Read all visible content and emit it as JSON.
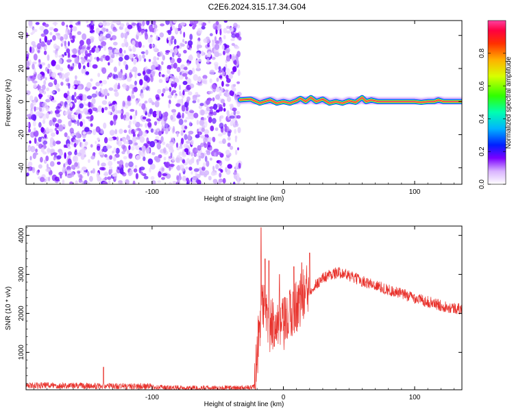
{
  "title": "C2E6.2024.315.17.34.G04",
  "chart_data": [
    {
      "type": "heatmap",
      "xlabel": "Height of straight line (km)",
      "ylabel": "Frequency (Hz)",
      "xlim": [
        -196,
        136
      ],
      "ylim": [
        -50,
        49
      ],
      "x_ticks": [
        -100,
        0,
        100
      ],
      "y_ticks": [
        -40,
        -20,
        0,
        20,
        40
      ],
      "colorbar": {
        "label": "Normalized spectral amplitude",
        "range": [
          0,
          1
        ],
        "ticks": [
          0,
          0.2,
          0.4,
          0.6,
          0.8
        ],
        "tick_labels": [
          "0.0",
          "0.2",
          "0.4",
          "0.6",
          "0.8"
        ]
      },
      "noise_region": [
        -196,
        -33
      ],
      "signal_ridge": {
        "x_range": [
          -33,
          136
        ],
        "frequency": 0,
        "wiggle_points": [
          [
            -33,
            1
          ],
          [
            -25,
            1.5
          ],
          [
            -18,
            -1
          ],
          [
            -10,
            1
          ],
          [
            -5,
            -1
          ],
          [
            0,
            0
          ],
          [
            5,
            -1
          ],
          [
            10,
            0.5
          ],
          [
            13,
            2
          ],
          [
            17,
            0
          ],
          [
            21,
            2.5
          ],
          [
            25,
            0
          ],
          [
            30,
            1.5
          ],
          [
            35,
            -1
          ],
          [
            40,
            0
          ],
          [
            45,
            -1
          ],
          [
            50,
            0.5
          ],
          [
            55,
            -0.5
          ],
          [
            60,
            2.5
          ],
          [
            63,
            0
          ],
          [
            67,
            1
          ],
          [
            72,
            0
          ],
          [
            100,
            0
          ],
          [
            105,
            -0.5
          ],
          [
            110,
            0
          ],
          [
            115,
            0
          ],
          [
            118,
            1
          ],
          [
            122,
            0
          ],
          [
            136,
            0
          ]
        ]
      }
    },
    {
      "type": "line",
      "xlabel": "Height of straight line (km)",
      "ylabel": "SNR (10 * v/v)",
      "xlim": [
        -196,
        136
      ],
      "ylim": [
        40,
        4240
      ],
      "x_ticks": [
        -100,
        0,
        100
      ],
      "y_ticks": [
        1000,
        2000,
        3000,
        4000
      ],
      "color": "#e8302a",
      "envelope": [
        [
          -196,
          150
        ],
        [
          -180,
          170
        ],
        [
          -160,
          150
        ],
        [
          -140,
          130
        ],
        [
          -120,
          110
        ],
        [
          -100,
          90
        ],
        [
          -80,
          70
        ],
        [
          -60,
          55
        ],
        [
          -40,
          50
        ],
        [
          -25,
          60
        ],
        [
          -22,
          150
        ],
        [
          -20,
          800
        ],
        [
          -18,
          1800
        ],
        [
          -16,
          2400
        ],
        [
          -14,
          1900
        ],
        [
          -12,
          1800
        ],
        [
          -10,
          1600
        ],
        [
          -8,
          1700
        ],
        [
          -6,
          1900
        ],
        [
          -4,
          1700
        ],
        [
          -2,
          1600
        ],
        [
          0,
          1700
        ],
        [
          2,
          1700
        ],
        [
          4,
          1900
        ],
        [
          6,
          2000
        ],
        [
          8,
          2100
        ],
        [
          10,
          2200
        ],
        [
          12,
          2300
        ],
        [
          14,
          2400
        ],
        [
          16,
          2500
        ],
        [
          18,
          2550
        ],
        [
          20,
          2600
        ],
        [
          22,
          2650
        ],
        [
          25,
          2750
        ],
        [
          30,
          2900
        ],
        [
          35,
          3000
        ],
        [
          40,
          3030
        ],
        [
          45,
          3050
        ],
        [
          50,
          2960
        ],
        [
          60,
          2830
        ],
        [
          70,
          2720
        ],
        [
          80,
          2600
        ],
        [
          90,
          2500
        ],
        [
          100,
          2400
        ],
        [
          110,
          2300
        ],
        [
          120,
          2200
        ],
        [
          136,
          2100
        ]
      ],
      "spikes": [
        [
          -17,
          4200
        ],
        [
          -14,
          3400
        ],
        [
          -11,
          3350
        ],
        [
          -3,
          3000
        ],
        [
          8,
          3200
        ],
        [
          14,
          3300
        ],
        [
          20,
          3550
        ],
        [
          -137,
          620
        ]
      ]
    }
  ]
}
